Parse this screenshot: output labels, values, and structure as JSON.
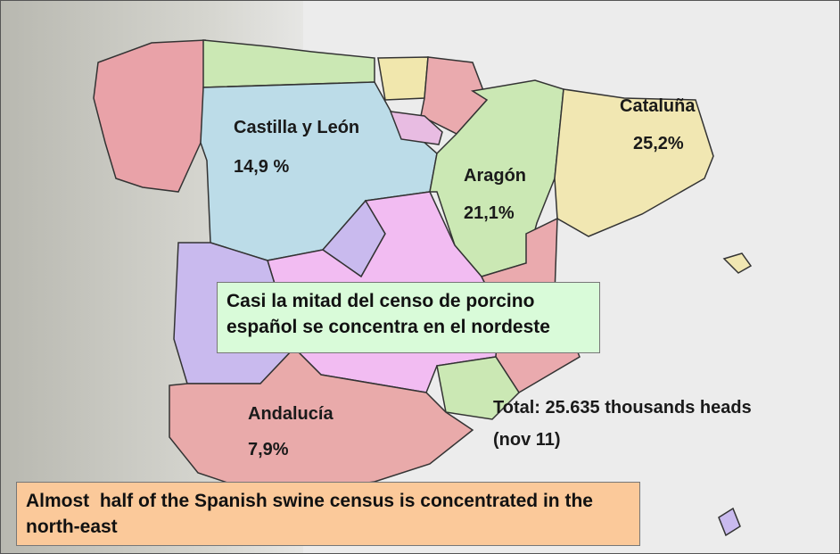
{
  "regions": [
    {
      "name": "Castilla y León",
      "share": "14,9 %"
    },
    {
      "name": "Aragón",
      "share": "21,1%"
    },
    {
      "name": "Cataluña",
      "share": "25,2%"
    },
    {
      "name": "Andalucía",
      "share": "7,9%"
    }
  ],
  "notes": {
    "spanish": "Casi la mitad del censo de porcino español se concentra en el nordeste",
    "english": "Almost  half of the Spanish swine census is concentrated in the north-east"
  },
  "total": {
    "text": "Total: 25.635 thousands heads",
    "date": "(nov 11)"
  }
}
